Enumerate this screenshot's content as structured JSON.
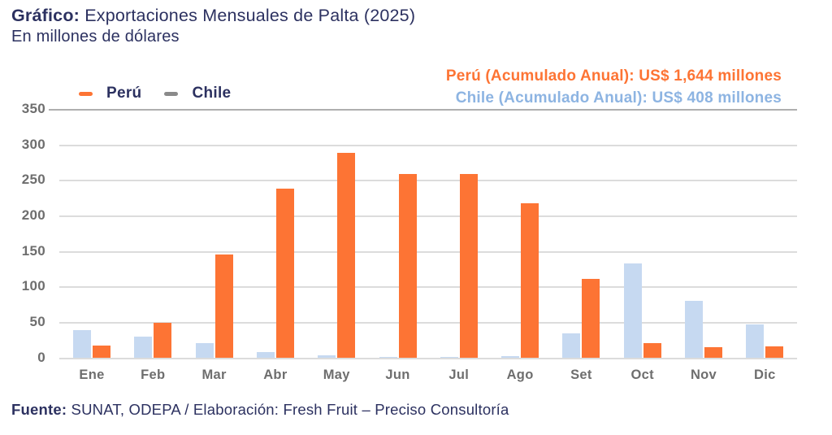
{
  "title": {
    "prefix": "Gráfico:",
    "main": " Exportaciones Mensuales de Palta (2025)",
    "subtitle": "En millones de dólares"
  },
  "legend": {
    "items": [
      {
        "label": "Perú",
        "color": "#FD7434"
      },
      {
        "label": "Chile",
        "color": "#8A8A8A"
      }
    ]
  },
  "annotations": {
    "peru": "Perú (Acumulado Anual): US$ 1,644 millones",
    "chile": "Chile (Acumulado Anual): US$ 408 millones"
  },
  "footer": {
    "prefix": "Fuente:",
    "text": " SUNAT, ODEPA / Elaboración: Fresh Fruit – Preciso Consultoría"
  },
  "colors": {
    "navy_text": "#2C3160",
    "peru_accent": "#FD7434",
    "chile_bar": "#C6D9F1",
    "chile_annotation_text": "#8DB4E2",
    "axis_label_gray": "#6E6E6E",
    "gridline": "#DCDCDC",
    "top_divider": "#AFAFAF"
  },
  "chart_data": {
    "type": "bar",
    "title": "Exportaciones Mensuales de Palta (2025)",
    "ylabel": "En millones de dólares",
    "categories": [
      "Ene",
      "Feb",
      "Mar",
      "Abr",
      "May",
      "Jun",
      "Jul",
      "Ago",
      "Set",
      "Oct",
      "Nov",
      "Dic"
    ],
    "series": [
      {
        "name": "Chile",
        "color": "#C6D9F1",
        "values": [
          39,
          30,
          21,
          9,
          4,
          2,
          2,
          3,
          35,
          134,
          81,
          48
        ],
        "annual_total": 408
      },
      {
        "name": "Perú",
        "color": "#FD7434",
        "values": [
          18,
          50,
          146,
          239,
          289,
          260,
          259,
          218,
          112,
          21,
          15,
          17
        ],
        "annual_total": 1644
      }
    ],
    "ylim": [
      0,
      350
    ],
    "yticks": [
      0,
      50,
      100,
      150,
      200,
      250,
      300,
      350
    ],
    "grid": true,
    "legend_position": "top-left",
    "bar_order_in_group": [
      "Chile",
      "Perú"
    ]
  }
}
